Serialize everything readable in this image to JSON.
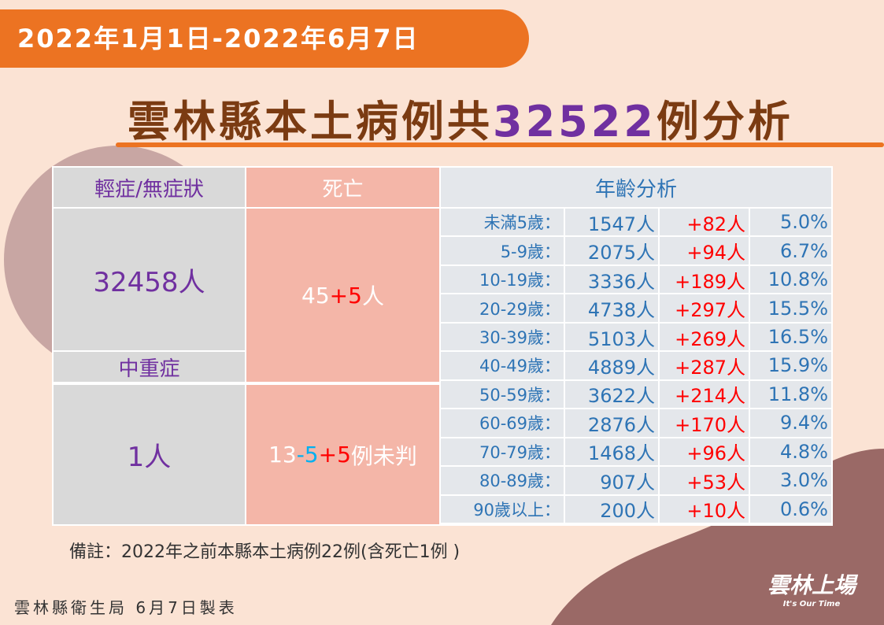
{
  "header": {
    "date": "2022年1月1日-2022年6月7日",
    "title": {
      "prefix": "雲林縣本土病例共",
      "total": "32522",
      "suffix": "例分析"
    }
  },
  "table": {
    "headers": [
      "輕症/無症狀",
      "死亡",
      "年齡分析"
    ],
    "mild": "32458人",
    "severe_header": "中重症",
    "severe": "1人",
    "deaths_mild": [
      "45",
      "+5",
      "人"
    ],
    "deaths_severe": [
      "13",
      "-5",
      "+5",
      "例未判"
    ],
    "age_rows": [
      [
        "未滿5歲：",
        "1547人",
        "+82人",
        "5.0%"
      ],
      [
        "5-9歲：",
        "2075人",
        "+94人",
        "6.7%"
      ],
      [
        "10-19歲：",
        "3336人",
        "+189人",
        "10.8%"
      ],
      [
        "20-29歲：",
        "4738人",
        "+297人",
        "15.5%"
      ],
      [
        "30-39歲：",
        "5103人",
        "+269人",
        "16.5%"
      ],
      [
        "40-49歲：",
        "4889人",
        "+287人",
        "15.9%"
      ],
      [
        "50-59歲：",
        "3622人",
        "+214人",
        "11.8%"
      ],
      [
        "60-69歲：",
        "2876人",
        "+170人",
        "9.4%"
      ],
      [
        "70-79歲：",
        "1468人",
        "+96人",
        "4.8%"
      ],
      [
        "80-89歲：",
        "907人",
        "+53人",
        "3.0%"
      ],
      [
        "90歲以上：",
        "200人",
        "+10人",
        "0.6%"
      ]
    ]
  },
  "note": "備註：2022年之前本縣本土病例22例(含死亡1例 )",
  "footer": "雲林縣衛生局 6月7日製表",
  "logo": {
    "name": "雲林上場",
    "tagline": "It's Our Time"
  }
}
